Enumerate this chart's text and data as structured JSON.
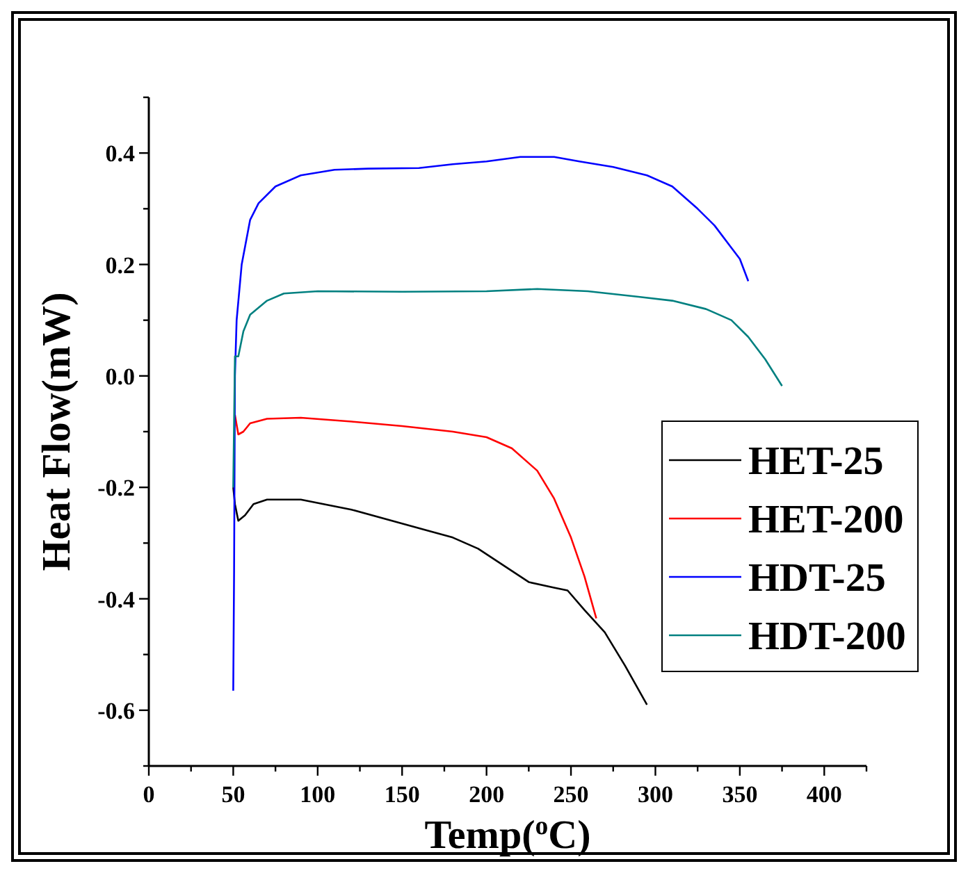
{
  "chart_data": {
    "type": "line",
    "xlabel": "Temp($^{o}$C)",
    "ylabel": "Heat Flow(mW)",
    "xlim": [
      0,
      425
    ],
    "ylim": [
      -0.7,
      0.5
    ],
    "xticks": [
      0,
      {
        "value": 25,
        "label": null
      },
      50,
      {
        "value": 75,
        "label": null
      },
      100,
      {
        "value": 125,
        "label": null
      },
      150,
      {
        "value": 175,
        "label": null
      },
      200,
      {
        "value": 225,
        "label": null
      },
      250,
      {
        "value": 275,
        "label": null
      },
      300,
      {
        "value": 325,
        "label": null
      },
      350,
      {
        "value": 375,
        "label": null
      },
      400,
      {
        "value": 425,
        "label": null
      }
    ],
    "yticks": [
      {
        "value": -0.7,
        "label": null
      },
      {
        "value": -0.6,
        "label": "-0.6"
      },
      {
        "value": -0.5,
        "label": null
      },
      {
        "value": -0.4,
        "label": "-0.4"
      },
      {
        "value": -0.3,
        "label": null
      },
      {
        "value": -0.2,
        "label": "-0.2"
      },
      {
        "value": -0.1,
        "label": null
      },
      {
        "value": 0,
        "label": "0.0"
      },
      {
        "value": 0.1,
        "label": null
      },
      {
        "value": 0.2,
        "label": "0.2"
      },
      {
        "value": 0.3,
        "label": null
      },
      {
        "value": 0.4,
        "label": "0.4"
      },
      {
        "value": 0.5,
        "label": null
      }
    ],
    "grid": false,
    "legend": "bottom right",
    "marker": "none",
    "line_style": "solid",
    "series": [
      {
        "name": "HET-25",
        "color": "#000000",
        "x": [
          50,
          51,
          53,
          57,
          62,
          70,
          90,
          120,
          150,
          180,
          195,
          210,
          225,
          240,
          248,
          258,
          270,
          282,
          295
        ],
        "values": [
          -0.2,
          -0.23,
          -0.26,
          -0.25,
          -0.23,
          -0.222,
          -0.222,
          -0.24,
          -0.265,
          -0.29,
          -0.31,
          -0.34,
          -0.37,
          -0.38,
          -0.385,
          -0.42,
          -0.46,
          -0.52,
          -0.59
        ]
      },
      {
        "name": "HET-200",
        "color": "#ff0000",
        "x": [
          51,
          53,
          56,
          60,
          70,
          90,
          120,
          150,
          180,
          200,
          215,
          230,
          240,
          250,
          258,
          265
        ],
        "values": [
          -0.07,
          -0.105,
          -0.1,
          -0.085,
          -0.077,
          -0.075,
          -0.082,
          -0.09,
          -0.1,
          -0.11,
          -0.13,
          -0.17,
          -0.22,
          -0.29,
          -0.36,
          -0.435
        ]
      },
      {
        "name": "HDT-25",
        "color": "#0000ff",
        "x": [
          50,
          50.5,
          51,
          52,
          55,
          60,
          65,
          75,
          90,
          110,
          130,
          160,
          180,
          200,
          220,
          240,
          255,
          275,
          295,
          310,
          325,
          335,
          345,
          350,
          355
        ],
        "values": [
          -0.565,
          -0.35,
          0,
          0.1,
          0.2,
          0.28,
          0.31,
          0.34,
          0.36,
          0.37,
          0.372,
          0.373,
          0.38,
          0.385,
          0.393,
          0.393,
          0.385,
          0.375,
          0.36,
          0.34,
          0.3,
          0.27,
          0.23,
          0.21,
          0.17
        ]
      },
      {
        "name": "HDT-200",
        "color": "#008080",
        "x": [
          50,
          51,
          53,
          56,
          60,
          70,
          80,
          100,
          150,
          200,
          230,
          260,
          290,
          310,
          330,
          345,
          355,
          365,
          375
        ],
        "values": [
          -0.2,
          0.035,
          0.035,
          0.08,
          0.11,
          0.135,
          0.148,
          0.152,
          0.151,
          0.152,
          0.156,
          0.152,
          0.142,
          0.135,
          0.12,
          0.1,
          0.07,
          0.03,
          -0.018
        ]
      }
    ]
  }
}
